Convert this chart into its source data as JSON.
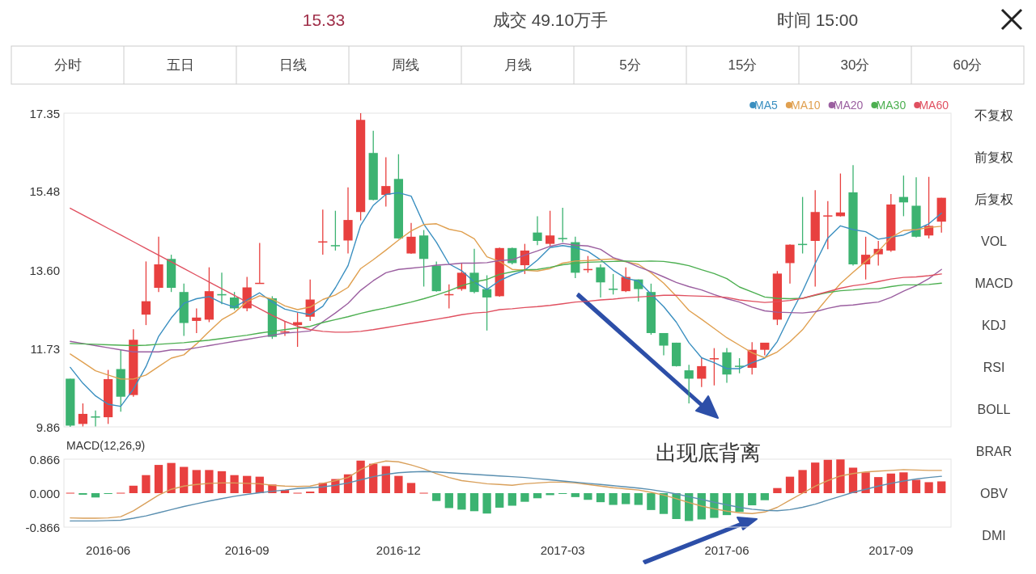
{
  "chart_data": [
    {
      "type": "other",
      "annotations": [
        "15.33",
        "成交 49.10万手",
        "时间 15:00"
      ]
    },
    {
      "type": "other",
      "annotations": [
        "分时",
        "五日",
        "日线",
        "周线",
        "月线",
        "5分",
        "15分",
        "30分",
        "60分"
      ]
    },
    {
      "type": "candlestick",
      "categories": [
        null,
        null,
        null,
        null,
        null,
        null,
        null,
        null,
        null,
        null,
        null,
        null,
        null,
        null,
        null,
        null,
        null,
        null,
        null,
        null,
        null,
        null,
        null,
        null,
        null,
        null,
        null,
        null,
        null,
        null,
        null,
        null,
        null,
        null,
        null,
        null,
        null,
        null,
        null,
        null,
        null,
        null,
        null,
        null,
        null,
        null,
        null,
        null,
        null,
        null,
        null,
        null,
        null,
        null,
        null,
        null,
        null,
        null,
        null,
        null,
        null,
        null,
        null,
        null,
        null,
        null,
        null,
        null,
        null,
        null
      ],
      "ohlc": [
        [
          11.01,
          11.01,
          9.86,
          9.89
        ],
        [
          9.93,
          10.42,
          9.87,
          10.17
        ],
        [
          10.11,
          10.25,
          9.87,
          10.1
        ],
        [
          10.09,
          11.22,
          9.93,
          11.0
        ],
        [
          11.24,
          11.7,
          10.22,
          10.58
        ],
        [
          10.62,
          12.19,
          10.58,
          11.94
        ],
        [
          12.54,
          13.81,
          12.29,
          12.86
        ],
        [
          13.18,
          14.4,
          13.08,
          13.74
        ],
        [
          13.87,
          13.97,
          13.08,
          13.18
        ],
        [
          13.08,
          13.28,
          12.03,
          12.34
        ],
        [
          12.39,
          12.69,
          12.1,
          12.47
        ],
        [
          12.42,
          13.67,
          12.36,
          13.1
        ],
        [
          13.03,
          13.54,
          12.79,
          13.0
        ],
        [
          12.95,
          13.08,
          12.65,
          12.69
        ],
        [
          12.69,
          13.44,
          12.62,
          13.19
        ],
        [
          13.29,
          14.25,
          13.28,
          13.3
        ],
        [
          12.93,
          12.98,
          11.96,
          12.01
        ],
        [
          12.12,
          12.38,
          12.03,
          12.14
        ],
        [
          12.29,
          12.59,
          11.77,
          12.36
        ],
        [
          12.49,
          13.38,
          12.39,
          12.9
        ],
        [
          14.28,
          15.05,
          13.97,
          14.29
        ],
        [
          14.2,
          15.02,
          14.07,
          14.19
        ],
        [
          14.31,
          15.58,
          14.0,
          14.8
        ],
        [
          14.99,
          17.35,
          14.79,
          17.19
        ],
        [
          16.4,
          16.93,
          15.27,
          15.28
        ],
        [
          15.4,
          16.3,
          15.12,
          15.61
        ],
        [
          15.78,
          16.37,
          14.35,
          14.36
        ],
        [
          14.0,
          14.73,
          13.99,
          14.4
        ],
        [
          14.43,
          14.56,
          13.21,
          13.87
        ],
        [
          13.71,
          13.81,
          13.09,
          13.1
        ],
        [
          13.01,
          13.26,
          12.69,
          13.03
        ],
        [
          13.15,
          13.77,
          13.11,
          13.54
        ],
        [
          13.54,
          14.11,
          13.05,
          13.08
        ],
        [
          13.15,
          13.48,
          12.16,
          12.95
        ],
        [
          12.98,
          14.14,
          12.97,
          14.13
        ],
        [
          14.13,
          14.14,
          13.74,
          13.77
        ],
        [
          13.72,
          14.23,
          13.51,
          14.07
        ],
        [
          14.5,
          14.89,
          14.2,
          14.3
        ],
        [
          14.23,
          15.02,
          14.17,
          14.43
        ],
        [
          14.37,
          15.09,
          14.27,
          14.36
        ],
        [
          14.27,
          14.4,
          13.41,
          13.54
        ],
        [
          13.61,
          13.94,
          13.54,
          13.63
        ],
        [
          13.67,
          13.74,
          12.95,
          13.31
        ],
        [
          13.16,
          13.51,
          13.02,
          13.15
        ],
        [
          13.1,
          13.67,
          13.08,
          13.44
        ],
        [
          13.38,
          13.38,
          12.85,
          13.15
        ],
        [
          13.08,
          13.28,
          12.06,
          12.1
        ],
        [
          12.1,
          12.1,
          11.57,
          11.8
        ],
        [
          11.87,
          11.87,
          11.3,
          11.31
        ],
        [
          11.21,
          11.34,
          10.42,
          11.01
        ],
        [
          11.01,
          11.5,
          10.81,
          11.31
        ],
        [
          11.49,
          11.74,
          10.85,
          11.5
        ],
        [
          11.64,
          11.74,
          10.91,
          11.11
        ],
        [
          11.32,
          11.5,
          11.14,
          11.31
        ],
        [
          11.27,
          11.88,
          11.11,
          11.7
        ],
        [
          11.7,
          11.87,
          11.57,
          11.87
        ],
        [
          12.42,
          13.58,
          12.29,
          13.52
        ],
        [
          13.77,
          14.22,
          13.28,
          14.21
        ],
        [
          14.23,
          15.35,
          14.0,
          14.22
        ],
        [
          14.3,
          15.51,
          13.21,
          14.99
        ],
        [
          14.9,
          15.25,
          14.1,
          14.91
        ],
        [
          14.89,
          15.91,
          14.88,
          14.98
        ],
        [
          15.46,
          16.11,
          13.71,
          13.74
        ],
        [
          13.74,
          14.4,
          13.38,
          13.97
        ],
        [
          13.98,
          14.3,
          13.71,
          14.11
        ],
        [
          14.07,
          15.42,
          14.04,
          15.17
        ],
        [
          15.35,
          15.86,
          14.89,
          15.22
        ],
        [
          15.14,
          15.82,
          14.38,
          14.4
        ],
        [
          14.43,
          15.83,
          14.36,
          14.66
        ],
        [
          14.76,
          15.33,
          14.5,
          15.33
        ]
      ],
      "ylim": [
        9.86,
        17.35
      ],
      "yticks": [
        9.86,
        11.73,
        {
          "value": 13.6,
          "label": "13.60"
        },
        15.48,
        17.35
      ],
      "tick_labels": "y",
      "legend": "top right",
      "series": [
        {
          "type": "line",
          "name": "MA5",
          "color": "#3a8fc0",
          "values": [
            11.28,
            10.9,
            10.6,
            10.4,
            10.35,
            10.76,
            11.3,
            12.02,
            12.46,
            12.81,
            12.92,
            12.97,
            12.82,
            12.72,
            12.89,
            13.06,
            12.84,
            12.67,
            12.6,
            12.54,
            12.74,
            13.18,
            13.71,
            14.67,
            15.15,
            15.41,
            15.45,
            15.37,
            14.7,
            14.27,
            13.75,
            13.59,
            13.32,
            13.14,
            13.35,
            13.49,
            13.6,
            13.84,
            14.14,
            14.19,
            14.14,
            14.05,
            13.85,
            13.6,
            13.41,
            13.34,
            13.03,
            12.73,
            12.36,
            11.87,
            11.51,
            11.39,
            11.25,
            11.25,
            11.39,
            11.5,
            11.9,
            12.52,
            13.1,
            13.76,
            14.37,
            14.66,
            14.57,
            14.52,
            14.34,
            14.39,
            14.44,
            14.57,
            14.71,
            14.96
          ]
        },
        {
          "type": "line",
          "name": "MA10",
          "color": "#e0a050",
          "values": [
            11.6,
            11.4,
            11.2,
            11.1,
            11.0,
            11.0,
            11.1,
            11.3,
            11.5,
            11.58,
            11.84,
            12.14,
            12.42,
            12.59,
            12.85,
            12.99,
            12.91,
            12.75,
            12.66,
            12.72,
            12.9,
            13.01,
            13.19,
            13.64,
            13.85,
            14.08,
            14.32,
            14.54,
            14.69,
            14.71,
            14.58,
            14.52,
            14.35,
            13.92,
            13.81,
            13.62,
            13.6,
            13.58,
            13.64,
            13.77,
            13.82,
            13.83,
            13.85,
            13.87,
            13.8,
            13.74,
            13.54,
            13.29,
            12.98,
            12.64,
            12.43,
            12.21,
            11.99,
            11.81,
            11.63,
            11.51,
            11.65,
            11.89,
            12.18,
            12.58,
            12.94,
            13.28,
            13.55,
            13.81,
            14.05,
            14.38,
            14.55,
            14.57,
            14.62,
            14.65
          ]
        },
        {
          "type": "line",
          "name": "MA20",
          "color": "#9b5fa0",
          "values": [
            11.9,
            11.85,
            11.8,
            11.75,
            11.7,
            11.65,
            11.65,
            11.65,
            11.7,
            11.7,
            11.75,
            11.8,
            11.85,
            11.9,
            11.95,
            12.0,
            12.05,
            12.1,
            12.12,
            12.15,
            12.37,
            12.58,
            12.81,
            13.12,
            13.35,
            13.54,
            13.62,
            13.65,
            13.68,
            13.72,
            13.74,
            13.77,
            13.77,
            13.78,
            13.83,
            13.85,
            13.96,
            14.06,
            14.17,
            14.24,
            14.2,
            14.18,
            14.1,
            13.9,
            13.81,
            13.68,
            13.57,
            13.44,
            13.31,
            13.21,
            13.13,
            13.02,
            12.92,
            12.84,
            12.72,
            12.63,
            12.6,
            12.59,
            12.58,
            12.61,
            12.69,
            12.75,
            12.77,
            12.81,
            12.84,
            12.95,
            13.1,
            13.23,
            13.4,
            13.62
          ]
        },
        {
          "type": "line",
          "name": "MA30",
          "color": "#4caf50",
          "values": [
            11.85,
            11.84,
            11.83,
            11.82,
            11.81,
            11.8,
            11.81,
            11.83,
            11.85,
            11.87,
            11.9,
            11.93,
            11.97,
            12.01,
            12.05,
            12.1,
            12.14,
            12.18,
            12.22,
            12.26,
            12.35,
            12.42,
            12.49,
            12.57,
            12.64,
            12.7,
            12.77,
            12.84,
            12.92,
            13.01,
            13.11,
            13.23,
            13.32,
            13.38,
            13.5,
            13.56,
            13.61,
            13.62,
            13.67,
            13.73,
            13.77,
            13.79,
            13.8,
            13.81,
            13.82,
            13.81,
            13.82,
            13.81,
            13.77,
            13.71,
            13.61,
            13.52,
            13.4,
            13.2,
            13.08,
            12.96,
            12.93,
            12.92,
            12.93,
            13.0,
            13.07,
            13.11,
            13.13,
            13.16,
            13.16,
            13.21,
            13.25,
            13.25,
            13.26,
            13.29
          ]
        },
        {
          "type": "line",
          "name": "MA60",
          "color": "#e05060",
          "values": [
            15.08,
            14.92,
            14.76,
            14.6,
            14.44,
            14.28,
            14.12,
            13.96,
            13.8,
            13.64,
            13.48,
            13.32,
            13.16,
            13.0,
            12.84,
            12.68,
            12.52,
            12.38,
            12.26,
            12.18,
            12.14,
            12.12,
            12.12,
            12.14,
            12.18,
            12.23,
            12.28,
            12.33,
            12.38,
            12.43,
            12.48,
            12.54,
            12.58,
            12.6,
            12.66,
            12.68,
            12.71,
            12.73,
            12.76,
            12.8,
            12.84,
            12.86,
            12.89,
            12.91,
            12.94,
            12.96,
            12.98,
            13.0,
            13.0,
            12.99,
            12.98,
            12.97,
            12.95,
            12.89,
            12.86,
            12.83,
            12.85,
            12.88,
            12.93,
            13.01,
            13.09,
            13.17,
            13.23,
            13.27,
            13.33,
            13.39,
            13.43,
            13.44,
            13.47,
            13.51
          ]
        }
      ]
    },
    {
      "type": "bar",
      "title": "MACD(12,26,9)",
      "categories": [
        null,
        null,
        null,
        "2016-06",
        null,
        null,
        null,
        null,
        null,
        null,
        null,
        null,
        null,
        null,
        "2016-09",
        null,
        null,
        null,
        null,
        null,
        null,
        null,
        null,
        null,
        null,
        null,
        "2016-12",
        null,
        null,
        null,
        null,
        null,
        null,
        null,
        null,
        null,
        null,
        null,
        null,
        "2017-03",
        null,
        null,
        null,
        null,
        null,
        null,
        null,
        null,
        null,
        null,
        null,
        null,
        "2017-06",
        null,
        null,
        null,
        null,
        null,
        null,
        null,
        null,
        null,
        null,
        null,
        null,
        "2017-09",
        null,
        null,
        null,
        null
      ],
      "ylim": [
        -0.866,
        0.866
      ],
      "yticks": [
        -0.866,
        {
          "value": 0,
          "label": "0.000"
        },
        0.866
      ],
      "series": [
        {
          "type": "bar",
          "colors": [
            "#e8403f",
            "#3cb371",
            "#3cb371",
            "#3cb371",
            "#e8403f",
            "#e8403f",
            "#e8403f",
            "#e8403f",
            "#e8403f",
            "#e8403f",
            "#e8403f",
            "#e8403f",
            "#e8403f",
            "#e8403f",
            "#e8403f",
            "#e8403f",
            "#e8403f",
            "#e8403f",
            "#e8403f",
            "#e8403f",
            "#e8403f",
            "#e8403f",
            "#e8403f",
            "#e8403f",
            "#e8403f",
            "#e8403f",
            "#e8403f",
            "#e8403f",
            "#e8403f",
            "#3cb371",
            "#3cb371",
            "#3cb371",
            "#3cb371",
            "#3cb371",
            "#3cb371",
            "#3cb371",
            "#3cb371",
            "#3cb371",
            "#3cb371",
            "#3cb371",
            "#3cb371",
            "#3cb371",
            "#3cb371",
            "#3cb371",
            "#3cb371",
            "#3cb371",
            "#3cb371",
            "#3cb371",
            "#3cb371",
            "#3cb371",
            "#3cb371",
            "#3cb371",
            "#3cb371",
            "#3cb371",
            "#3cb371",
            "#3cb371",
            "#e8403f",
            "#e8403f",
            "#e8403f",
            "#e8403f",
            "#e8403f",
            "#e8403f",
            "#e8403f",
            "#e8403f",
            "#e8403f",
            "#e8403f",
            "#e8403f",
            "#e8403f",
            "#e8403f",
            "#e8403f"
          ],
          "values": [
            0.01,
            -0.04,
            -0.11,
            -0.01,
            0.01,
            0.19,
            0.46,
            0.72,
            0.77,
            0.67,
            0.59,
            0.59,
            0.56,
            0.46,
            0.44,
            0.42,
            0.22,
            0.08,
            0.01,
            0.04,
            0.26,
            0.36,
            0.48,
            0.83,
            0.75,
            0.69,
            0.44,
            0.26,
            0.01,
            -0.2,
            -0.38,
            -0.42,
            -0.46,
            -0.52,
            -0.37,
            -0.32,
            -0.22,
            -0.13,
            -0.05,
            -0.01,
            -0.1,
            -0.17,
            -0.23,
            -0.3,
            -0.28,
            -0.3,
            -0.43,
            -0.53,
            -0.66,
            -0.71,
            -0.67,
            -0.63,
            -0.56,
            -0.48,
            -0.31,
            -0.18,
            0.13,
            0.42,
            0.59,
            0.78,
            0.85,
            0.86,
            0.65,
            0.53,
            0.41,
            0.5,
            0.53,
            0.34,
            0.28,
            0.3
          ]
        },
        {
          "type": "line",
          "color": "#d9a05b",
          "values": [
            -0.63,
            -0.64,
            -0.64,
            -0.63,
            -0.6,
            -0.45,
            -0.25,
            -0.05,
            0.1,
            0.18,
            0.22,
            0.25,
            0.26,
            0.26,
            0.25,
            0.24,
            0.2,
            0.18,
            0.17,
            0.18,
            0.25,
            0.32,
            0.4,
            0.6,
            0.75,
            0.82,
            0.8,
            0.72,
            0.62,
            0.5,
            0.4,
            0.32,
            0.28,
            0.24,
            0.22,
            0.2,
            0.24,
            0.26,
            0.28,
            0.28,
            0.26,
            0.22,
            0.18,
            0.14,
            0.11,
            0.08,
            0.02,
            -0.05,
            -0.14,
            -0.24,
            -0.33,
            -0.4,
            -0.46,
            -0.5,
            -0.52,
            -0.48,
            -0.36,
            -0.18,
            0.0,
            0.18,
            0.32,
            0.44,
            0.5,
            0.54,
            0.56,
            0.58,
            0.6,
            0.59,
            0.58,
            0.58
          ]
        },
        {
          "type": "line",
          "color": "#5a8fb0",
          "values": [
            -0.71,
            -0.71,
            -0.71,
            -0.7,
            -0.69,
            -0.64,
            -0.58,
            -0.5,
            -0.42,
            -0.34,
            -0.27,
            -0.2,
            -0.14,
            -0.08,
            -0.03,
            0.01,
            0.05,
            0.08,
            0.12,
            0.14,
            0.16,
            0.2,
            0.26,
            0.34,
            0.42,
            0.48,
            0.52,
            0.54,
            0.55,
            0.54,
            0.52,
            0.5,
            0.48,
            0.46,
            0.44,
            0.42,
            0.4,
            0.37,
            0.34,
            0.31,
            0.28,
            0.25,
            0.22,
            0.19,
            0.16,
            0.13,
            0.09,
            0.04,
            -0.02,
            -0.09,
            -0.16,
            -0.23,
            -0.3,
            -0.36,
            -0.41,
            -0.44,
            -0.45,
            -0.42,
            -0.36,
            -0.28,
            -0.18,
            -0.08,
            0.02,
            0.1,
            0.18,
            0.25,
            0.31,
            0.36,
            0.4,
            0.43
          ]
        }
      ],
      "annotations": [
        "出现底背离"
      ]
    },
    {
      "type": "other",
      "annotations": [
        "不复权",
        "前复权",
        "后复权",
        "VOL",
        "MACD",
        "KDJ",
        "RSI",
        "BOLL",
        "BRAR",
        "OBV",
        "DMI"
      ]
    }
  ]
}
